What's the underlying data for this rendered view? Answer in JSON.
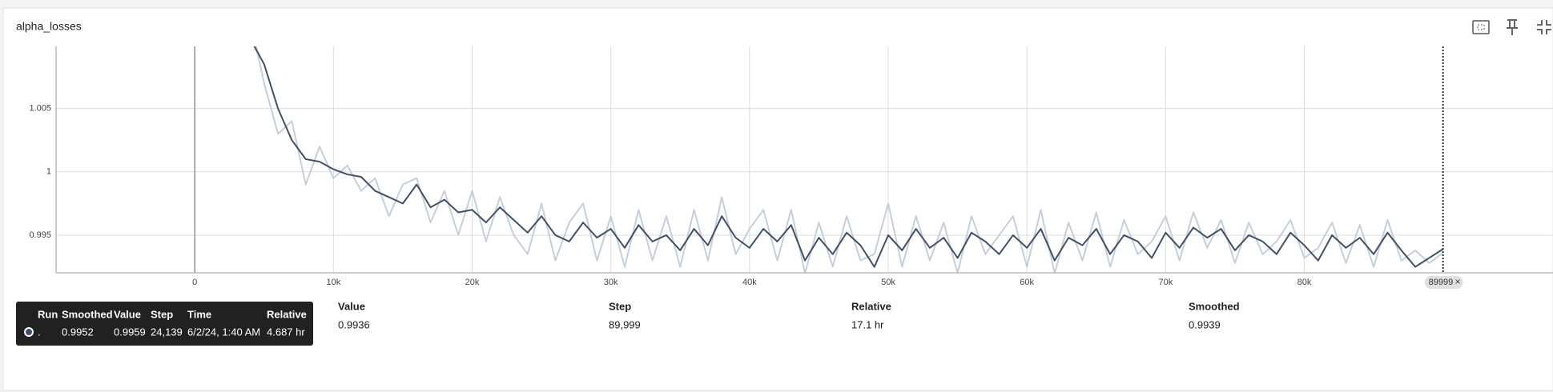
{
  "card": {
    "title": "alpha_losses"
  },
  "chart_data": {
    "type": "line",
    "x": [
      4000,
      5000,
      6000,
      7000,
      8000,
      9000,
      10000,
      11000,
      12000,
      13000,
      14000,
      15000,
      16000,
      17000,
      18000,
      19000,
      20000,
      21000,
      22000,
      23000,
      24000,
      25000,
      26000,
      27000,
      28000,
      29000,
      30000,
      31000,
      32000,
      33000,
      34000,
      35000,
      36000,
      37000,
      38000,
      39000,
      40000,
      41000,
      42000,
      43000,
      44000,
      45000,
      46000,
      47000,
      48000,
      49000,
      50000,
      51000,
      52000,
      53000,
      54000,
      55000,
      56000,
      57000,
      58000,
      59000,
      60000,
      61000,
      62000,
      63000,
      64000,
      65000,
      66000,
      67000,
      68000,
      69000,
      70000,
      71000,
      72000,
      73000,
      74000,
      75000,
      76000,
      77000,
      78000,
      79000,
      80000,
      81000,
      82000,
      83000,
      84000,
      85000,
      86000,
      87000,
      88000,
      89000,
      89999
    ],
    "series": [
      {
        "color": "#c5cfdc",
        "values": [
          1.012,
          1.007,
          1.003,
          1.004,
          0.999,
          1.002,
          0.9995,
          1.0005,
          0.9985,
          0.9995,
          0.9965,
          0.999,
          0.9995,
          0.996,
          0.9985,
          0.995,
          0.9985,
          0.9945,
          0.998,
          0.995,
          0.9935,
          0.9975,
          0.993,
          0.996,
          0.9975,
          0.993,
          0.9965,
          0.9925,
          0.997,
          0.993,
          0.9965,
          0.9925,
          0.997,
          0.993,
          0.998,
          0.9935,
          0.9955,
          0.997,
          0.993,
          0.997,
          0.992,
          0.996,
          0.9925,
          0.9965,
          0.993,
          0.9935,
          0.9975,
          0.9925,
          0.9965,
          0.993,
          0.996,
          0.992,
          0.9965,
          0.9935,
          0.995,
          0.9965,
          0.9925,
          0.997,
          0.992,
          0.996,
          0.993,
          0.9968,
          0.9925,
          0.9962,
          0.9935,
          0.9945,
          0.9965,
          0.993,
          0.9968,
          0.994,
          0.9962,
          0.9928,
          0.996,
          0.9935,
          0.9945,
          0.9962,
          0.9932,
          0.994,
          0.996,
          0.9928,
          0.9958,
          0.9925,
          0.9962,
          0.993,
          0.9938,
          0.9928,
          0.9936
        ]
      },
      {
        "color": "#425066",
        "values": [
          1.0105,
          1.0085,
          1.005,
          1.0025,
          1.001,
          1.0008,
          1.0002,
          0.9998,
          0.9996,
          0.9985,
          0.998,
          0.9975,
          0.999,
          0.9972,
          0.9978,
          0.9968,
          0.997,
          0.996,
          0.9972,
          0.9962,
          0.9952,
          0.9965,
          0.995,
          0.9945,
          0.996,
          0.9948,
          0.9955,
          0.994,
          0.9958,
          0.9945,
          0.995,
          0.9938,
          0.9955,
          0.9942,
          0.9965,
          0.9948,
          0.994,
          0.9955,
          0.9945,
          0.9958,
          0.993,
          0.9948,
          0.9935,
          0.9952,
          0.9942,
          0.9925,
          0.995,
          0.9938,
          0.9955,
          0.994,
          0.9948,
          0.9932,
          0.9952,
          0.9945,
          0.9935,
          0.995,
          0.994,
          0.9955,
          0.993,
          0.9948,
          0.9942,
          0.9955,
          0.9935,
          0.995,
          0.9945,
          0.9932,
          0.9952,
          0.994,
          0.9956,
          0.9948,
          0.9955,
          0.9938,
          0.995,
          0.9945,
          0.9935,
          0.9952,
          0.9942,
          0.993,
          0.995,
          0.994,
          0.9948,
          0.9935,
          0.9952,
          0.9938,
          0.9925,
          0.9932,
          0.9939
        ]
      }
    ],
    "xlim": [
      -10000,
      97930
    ],
    "ylim": [
      0.99203,
      1.0099
    ],
    "xticks": [
      0,
      {
        "value": 10000,
        "label": "10k"
      },
      {
        "value": 20000,
        "label": "20k"
      },
      {
        "value": 30000,
        "label": "30k"
      },
      {
        "value": 40000,
        "label": "40k"
      },
      {
        "value": 50000,
        "label": "50k"
      },
      {
        "value": 60000,
        "label": "60k"
      },
      {
        "value": 70000,
        "label": "70k"
      },
      {
        "value": 80000,
        "label": "80k"
      }
    ],
    "yticks": [
      0.995,
      1,
      1.005
    ],
    "grid": true,
    "cursor_step": 89999
  },
  "tooltip": {
    "headers": [
      "Run",
      "Smoothed",
      "Value",
      "Step",
      "Time",
      "Relative"
    ],
    "row": [
      ".",
      0.9952,
      0.9959,
      "24,139",
      "6/2/24, 1:40 AM",
      "4.687 hr"
    ]
  },
  "table": {
    "headers": [
      "Value",
      "Step",
      "Relative",
      "Smoothed"
    ],
    "row": [
      0.9936,
      "89,999",
      "17.1 hr",
      0.9939
    ]
  }
}
